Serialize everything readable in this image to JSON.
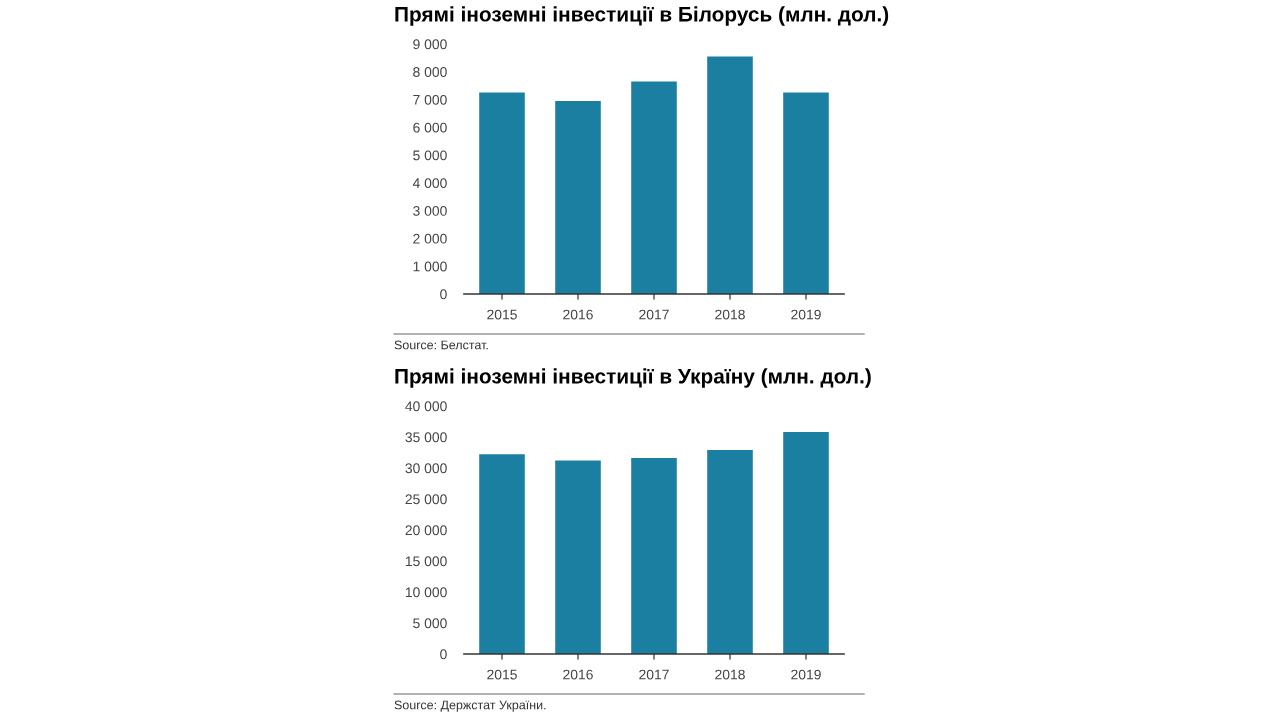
{
  "chart_data": [
    {
      "type": "bar",
      "title": "Прямі іноземні інвестиції в Білорусь (млн. дол.)",
      "categories": [
        "2015",
        "2016",
        "2017",
        "2018",
        "2019"
      ],
      "values": [
        7250,
        6950,
        7650,
        8550,
        7250
      ],
      "color": "#1a7fa0",
      "ylim": [
        0,
        9000
      ],
      "yticks": [
        {
          "value": 0,
          "label": "0"
        },
        {
          "value": 1000,
          "label": "1 000"
        },
        {
          "value": 2000,
          "label": "2 000"
        },
        {
          "value": 3000,
          "label": "3 000"
        },
        {
          "value": 4000,
          "label": "4 000"
        },
        {
          "value": 5000,
          "label": "5 000"
        },
        {
          "value": 6000,
          "label": "6 000"
        },
        {
          "value": 7000,
          "label": "7 000"
        },
        {
          "value": 8000,
          "label": "8 000"
        },
        {
          "value": 9000,
          "label": "9 000"
        }
      ],
      "grid": false,
      "annotations": [
        "Source: Белстат."
      ]
    },
    {
      "type": "bar",
      "title": "Прямі іноземні інвестиції в Україну (млн. дол.)",
      "categories": [
        "2015",
        "2016",
        "2017",
        "2018",
        "2019"
      ],
      "values": [
        32200,
        31200,
        31600,
        32900,
        35800
      ],
      "color": "#1a7fa0",
      "ylim": [
        0,
        40000
      ],
      "yticks": [
        {
          "value": 0,
          "label": "0"
        },
        {
          "value": 5000,
          "label": "5 000"
        },
        {
          "value": 10000,
          "label": "10 000"
        },
        {
          "value": 15000,
          "label": "15 000"
        },
        {
          "value": 20000,
          "label": "20 000"
        },
        {
          "value": 25000,
          "label": "25 000"
        },
        {
          "value": 30000,
          "label": "30 000"
        },
        {
          "value": 35000,
          "label": "35 000"
        },
        {
          "value": 40000,
          "label": "40 000"
        }
      ],
      "grid": false,
      "annotations": [
        "Source: Держстат України."
      ]
    }
  ]
}
